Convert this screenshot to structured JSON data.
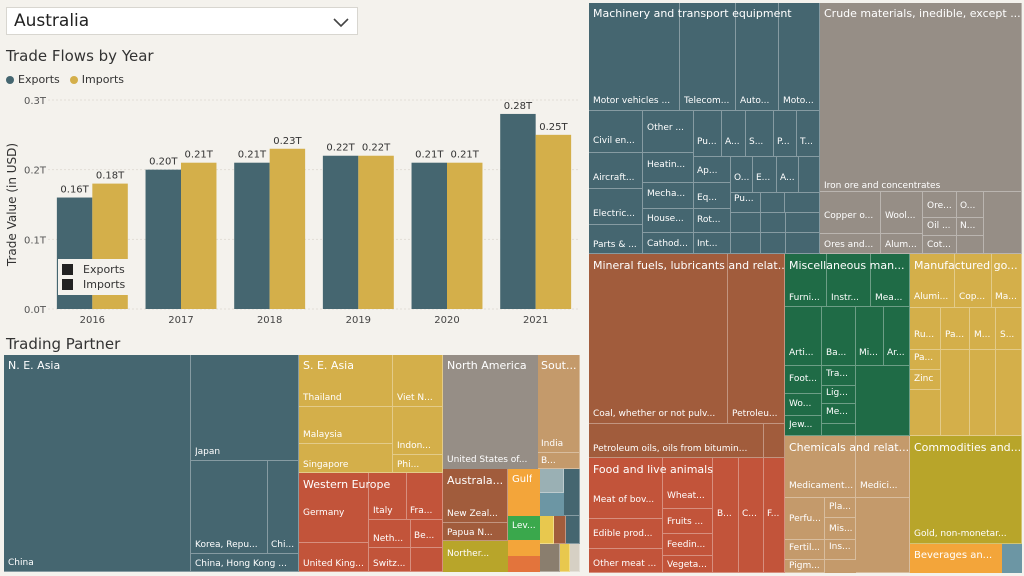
{
  "filter": {
    "selected": "Australia"
  },
  "trade_flows": {
    "title": "Trade Flows by Year",
    "legend": [
      "Exports",
      "Imports"
    ]
  },
  "trading_partner": {
    "title": "Trading Partner"
  },
  "colors": {
    "exports": "#456670",
    "imports": "#d4af4a",
    "teal": "#456670",
    "taupe": "#968e86",
    "brown": "#a15c3c",
    "green": "#1f6b46",
    "gold": "#d4af4a",
    "rust": "#c2543a",
    "tan": "#c49a6b",
    "olive": "#b8a52a",
    "orange": "#f3a53a"
  },
  "chart_data": {
    "type": "bar",
    "title": "Trade Flows by Year",
    "ylabel": "Trade Value (in USD)",
    "categories": [
      "2016",
      "2017",
      "2018",
      "2019",
      "2020",
      "2021"
    ],
    "series": [
      {
        "name": "Exports",
        "values": [
          0.16,
          0.2,
          0.21,
          0.22,
          0.21,
          0.28
        ],
        "labels": [
          "0.16T",
          "0.20T",
          "0.21T",
          "0.22T",
          "0.21T",
          "0.28T"
        ]
      },
      {
        "name": "Imports",
        "values": [
          0.18,
          0.21,
          0.23,
          0.22,
          0.21,
          0.25
        ],
        "labels": [
          "0.18T",
          "0.21T",
          "0.23T",
          "0.22T",
          "0.21T",
          "0.25T"
        ]
      }
    ],
    "yticks": [
      "0.0T",
      "0.1T",
      "0.2T",
      "0.3T"
    ],
    "ylim": [
      0,
      0.3
    ],
    "grid": true,
    "legend": "top-left"
  },
  "partner_treemap": {
    "ne_asia": {
      "title": "N. E. Asia",
      "cells": [
        "China",
        "Japan",
        "Korea, Repu...",
        "Chi...",
        "China, Hong Kong ..."
      ]
    },
    "se_asia": {
      "title": "S. E. Asia",
      "cells": [
        "Thailand",
        "Malaysia",
        "Singapore",
        "Viet N...",
        "Indon...",
        "Phi..."
      ]
    },
    "north_america": {
      "title": "North America",
      "cells": [
        "United States of..."
      ]
    },
    "south_asia": {
      "title": "Sout...",
      "cells": [
        "India",
        "B..."
      ]
    },
    "western_europe": {
      "title": "Western Europe",
      "cells": [
        "Germany",
        "United King...",
        "Italy",
        "Fra...",
        "Neth...",
        "Be...",
        "Switz..."
      ]
    },
    "australasia": {
      "title": "Australa...",
      "cells": [
        "New Zeal...",
        "Papua N..."
      ]
    },
    "gulf": {
      "title": "Gulf"
    },
    "other": {
      "cells": [
        "Lev...",
        "Norther..."
      ]
    }
  },
  "product_treemap": {
    "machinery": {
      "title": "Machinery and transport equipment",
      "cells": [
        "Motor vehicles ...",
        "Telecom...",
        "Auto...",
        "Moto...",
        "Civil en...",
        "Other ...",
        "Pu...",
        "A...",
        "S...",
        "P...",
        "T...",
        "Aircraft...",
        "Heatin...",
        "Ap...",
        "O...",
        "E...",
        "A...",
        "Electric...",
        "Mecha...",
        "Eq...",
        "Pu...",
        "House...",
        "Rot...",
        "Parts & ...",
        "Cathod...",
        "Int..."
      ]
    },
    "crude": {
      "title": "Crude materials, inedible, except ...",
      "cells": [
        "Iron ore and concentrates",
        "Copper o...",
        "Wool...",
        "Ore...",
        "O...",
        "Oil ...",
        "N...",
        "Ores and...",
        "Alum...",
        "Cot..."
      ]
    },
    "mineral": {
      "title": "Mineral fuels, lubricants and relat...",
      "cells": [
        "Coal, whether or not pulv...",
        "Petroleu...",
        "Petroleum oils, oils from bitumin..."
      ]
    },
    "misc": {
      "title": "Miscellaneous man...",
      "cells": [
        "Furni...",
        "Instr...",
        "Mea...",
        "Arti...",
        "Ba...",
        "Mi...",
        "Ar...",
        "Foot...",
        "Tra...",
        "Lig...",
        "Wo...",
        "Me...",
        "Jew..."
      ]
    },
    "manufactured": {
      "title": "Manufactured go...",
      "cells": [
        "Alumi...",
        "Cop...",
        "Ma...",
        "Ru...",
        "Pa...",
        "M...",
        "S...",
        "Pa...",
        "Zinc"
      ]
    },
    "food": {
      "title": "Food and live animals",
      "cells": [
        "Meat of bov...",
        "Wheat...",
        "B...",
        "C...",
        "F...",
        "Fruits ...",
        "Edible prod...",
        "Feedin...",
        "Other meat ...",
        "Vegeta..."
      ]
    },
    "chemicals": {
      "title": "Chemicals and relat...",
      "cells": [
        "Medicament...",
        "Medici...",
        "Perfu...",
        "Pla...",
        "Mis...",
        "Fertil...",
        "Ins...",
        "Pigm..."
      ]
    },
    "commodities": {
      "title": "Commodities and...",
      "cells": [
        "Gold, non-monetar...",
        "Beverages an..."
      ]
    }
  }
}
